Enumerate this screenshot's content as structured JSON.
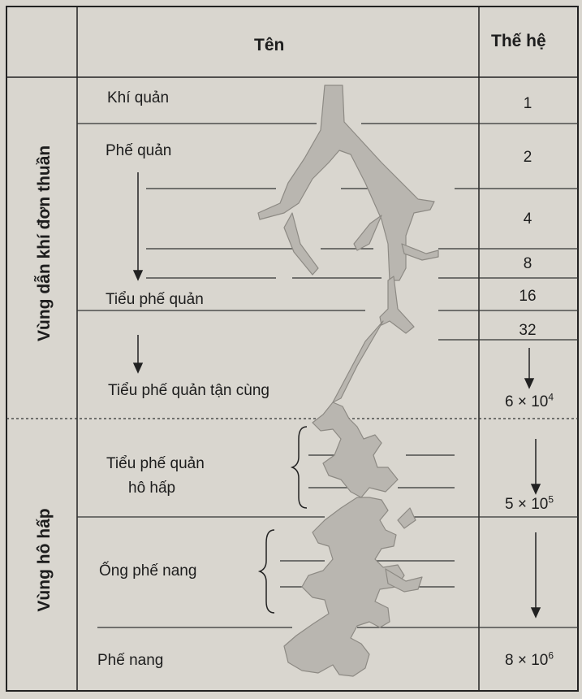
{
  "header": {
    "name_col": "Tên",
    "gen_col": "Thế hệ"
  },
  "zones": [
    {
      "label": "Vùng dẫn khí đơn thuần"
    },
    {
      "label": "Vùng hô hấp"
    }
  ],
  "rows": [
    {
      "name": "Khí quản",
      "generation": "1"
    },
    {
      "name": "Phế quản",
      "generation": "2"
    },
    {
      "name": "",
      "generation": "4"
    },
    {
      "name": "",
      "generation": "8"
    },
    {
      "name": "Tiểu phế quản",
      "generation": "16"
    },
    {
      "name": "",
      "generation": "32"
    },
    {
      "name": "Tiểu phế quản tận cùng",
      "generation_base": "6 × 10",
      "generation_exp": "4"
    },
    {
      "name_line1": "Tiểu phế quản",
      "name_line2": "hô hấp",
      "generation_base": "5 × 10",
      "generation_exp": "5"
    },
    {
      "name": "Ống phế nang"
    },
    {
      "name": "Phế nang",
      "generation_base": "8 × 10",
      "generation_exp": "6"
    }
  ],
  "colors": {
    "paper": "#d9d6cf",
    "ink": "#1d1d1d",
    "airway": "#b9b6b0"
  }
}
